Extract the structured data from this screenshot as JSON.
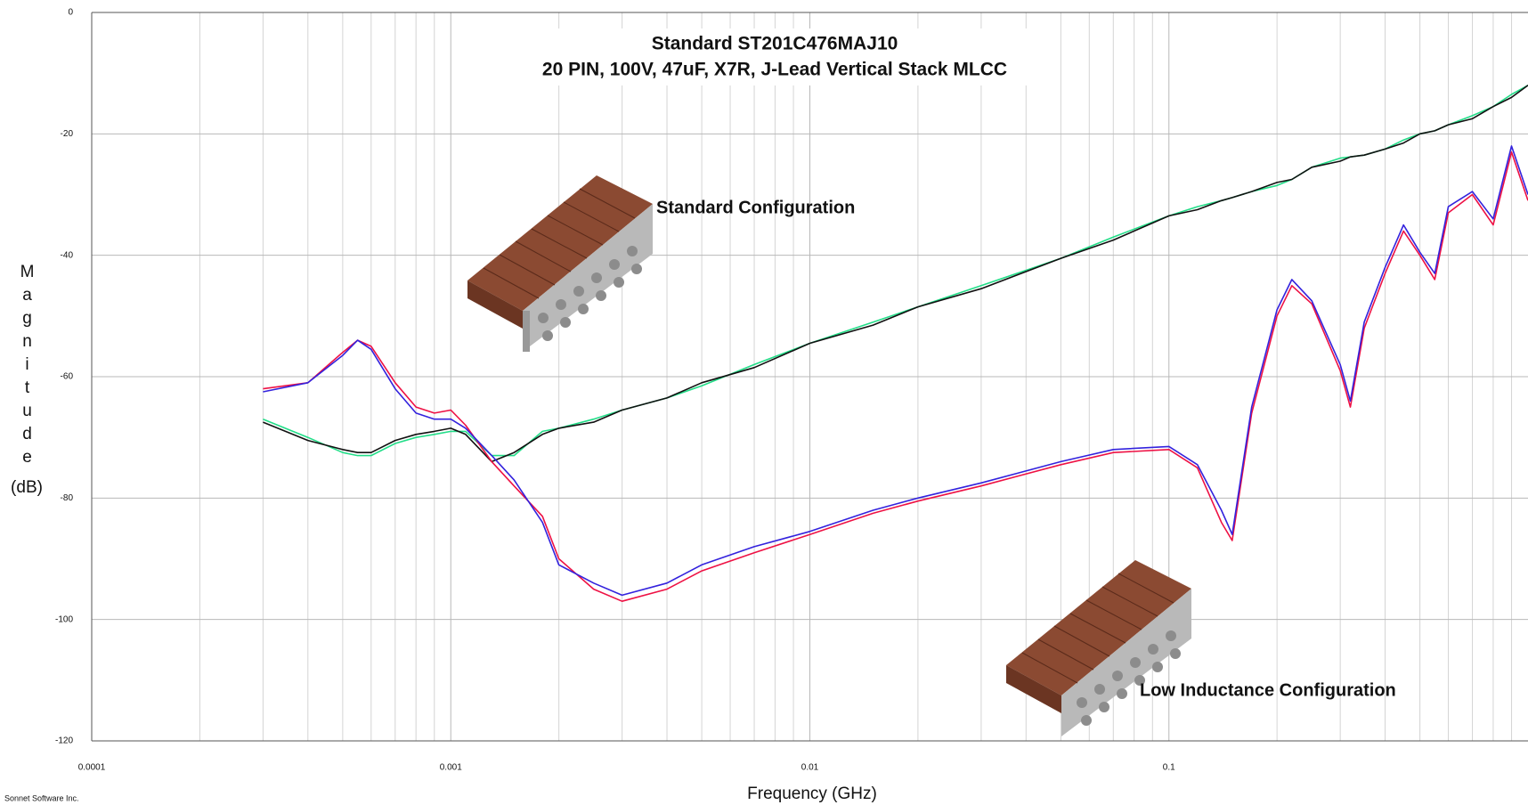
{
  "chart_data": {
    "type": "line",
    "title": "Standard ST201C476MAJ10",
    "subtitle": "20 PIN, 100V, 47uF, X7R, J-Lead Vertical Stack MLCC",
    "x_label": "Frequency (GHz)",
    "y_label": "Magnitude",
    "y_unit": "(dB)",
    "annotations": [
      "Standard Configuration",
      "Low Inductance  Configuration"
    ],
    "credit": "Sonnet Software Inc.",
    "x_scale": "log",
    "grid": true,
    "xlim": [
      0.0001,
      1
    ],
    "xticks": [
      0.0001,
      0.001,
      0.01,
      0.1
    ],
    "ylim": [
      -120,
      0
    ],
    "yticks": [
      0,
      -20,
      -40,
      -60,
      -80,
      -100,
      -120
    ],
    "x": [
      0.0003,
      0.0004,
      0.0005,
      0.00055,
      0.0006,
      0.0007,
      0.0008,
      0.0009,
      0.001,
      0.0011,
      0.0013,
      0.0015,
      0.0018,
      0.002,
      0.0025,
      0.003,
      0.004,
      0.005,
      0.007,
      0.01,
      0.015,
      0.02,
      0.03,
      0.05,
      0.07,
      0.1,
      0.12,
      0.14,
      0.15,
      0.17,
      0.2,
      0.22,
      0.25,
      0.3,
      0.32,
      0.35,
      0.4,
      0.45,
      0.5,
      0.55,
      0.6,
      0.7,
      0.8,
      0.9,
      1
    ],
    "series": [
      {
        "color": "#22dd88",
        "values": [
          -67,
          -70,
          -72.5,
          -73,
          -73,
          -71,
          -70,
          -69.5,
          -69,
          -69,
          -73,
          -73,
          -69,
          -68.5,
          -67,
          -65.5,
          -63.5,
          -61.5,
          -58,
          -54.5,
          -51,
          -48.5,
          -45,
          -40.5,
          -37,
          -33.5,
          -32,
          -31,
          -30.5,
          -29.5,
          -28.5,
          -27.5,
          -25.5,
          -24,
          -23.8,
          -23.5,
          -22.5,
          -21,
          -20,
          -19.5,
          -18.5,
          -17,
          -15.5,
          -13.5,
          -12
        ]
      },
      {
        "color": "#111111",
        "values": [
          -67.5,
          -70.5,
          -72,
          -72.5,
          -72.5,
          -70.5,
          -69.5,
          -69,
          -68.5,
          -69.5,
          -74,
          -72.5,
          -69.5,
          -68.5,
          -67.5,
          -65.5,
          -63.5,
          -61,
          -58.5,
          -54.5,
          -51.5,
          -48.5,
          -45.5,
          -40.5,
          -37.5,
          -33.5,
          -32.5,
          -31,
          -30.5,
          -29.5,
          -28,
          -27.5,
          -25.5,
          -24.5,
          -23.8,
          -23.5,
          -22.5,
          -21.5,
          -20,
          -19.5,
          -18.5,
          -17.5,
          -15.5,
          -14,
          -12
        ]
      },
      {
        "color": "#ee1144",
        "values": [
          -62,
          -61,
          -56,
          -54,
          -55,
          -61,
          -65,
          -66,
          -65.5,
          -68,
          -74,
          -78,
          -83,
          -90,
          -95,
          -97,
          -95,
          -92,
          -89,
          -86,
          -82.5,
          -80.5,
          -78,
          -74.5,
          -72.5,
          -72,
          -75,
          -84,
          -87,
          -66,
          -50,
          -45,
          -48,
          -59,
          -65,
          -52,
          -43,
          -36,
          -40,
          -44,
          -33,
          -30,
          -35,
          -23,
          -31
        ]
      },
      {
        "color": "#3322dd",
        "values": [
          -62.5,
          -61,
          -56.5,
          -54,
          -55.5,
          -62,
          -66,
          -67,
          -67,
          -68.5,
          -73,
          -77,
          -84,
          -91,
          -94,
          -96,
          -94,
          -91,
          -88,
          -85.5,
          -82,
          -80,
          -77.5,
          -74,
          -72,
          -71.5,
          -74.5,
          -82,
          -86,
          -65,
          -49,
          -44,
          -47.5,
          -58,
          -64,
          -51,
          -42,
          -35,
          -39.5,
          -43,
          -32,
          -29.5,
          -34,
          -22,
          -30
        ]
      }
    ]
  }
}
